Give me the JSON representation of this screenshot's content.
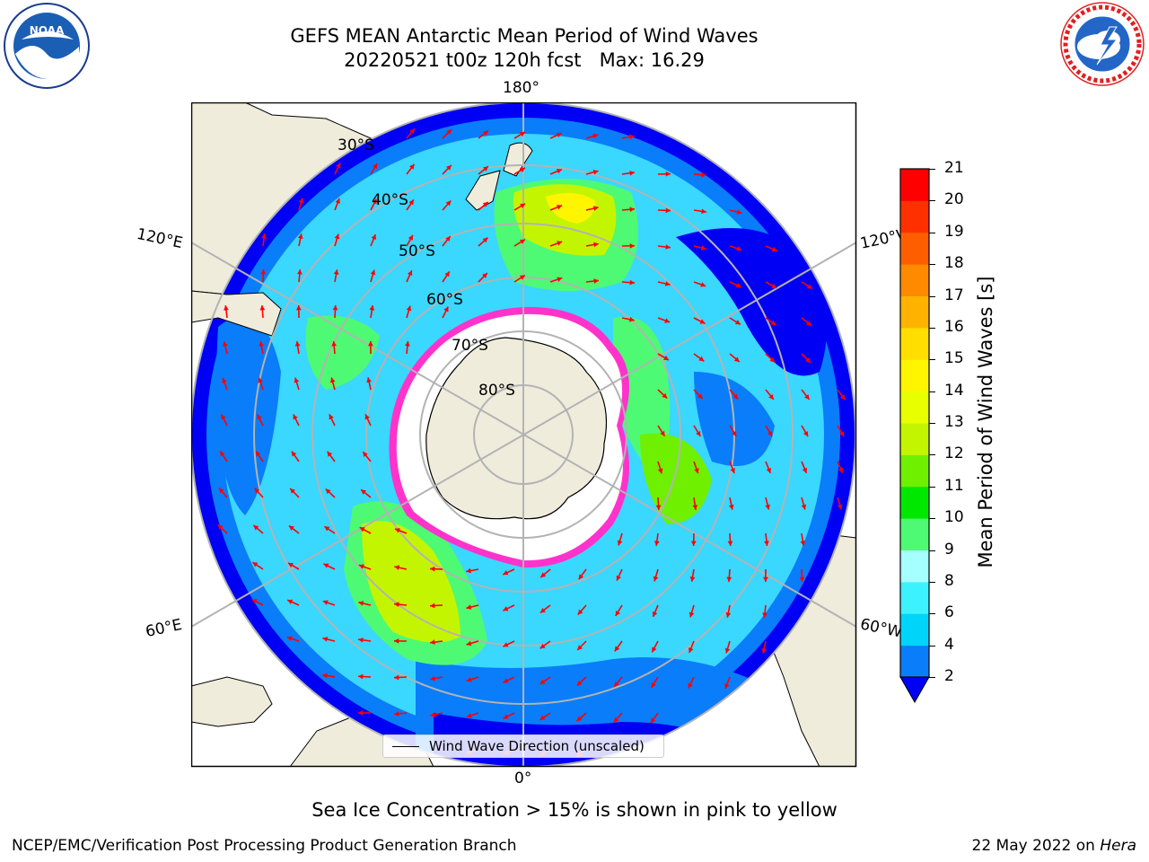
{
  "header": {
    "title": "GEFS MEAN Antarctic Mean Period of Wind Waves",
    "subtitle": "20220521 t00z 120h fcst   Max: 16.29"
  },
  "logos": {
    "left": {
      "icon": "noaa-logo-icon",
      "text": "NOAA"
    },
    "right": {
      "icon": "national-weather-service-logo-icon"
    }
  },
  "map": {
    "projection": "south-polar-stereographic",
    "longitude_labels": {
      "top": "180°",
      "left_upper": "120°E",
      "right_upper": "120°W",
      "left_lower": "60°E",
      "right_lower": "60°W",
      "bottom": "0°"
    },
    "latitude_labels": [
      "30°S",
      "40°S",
      "50°S",
      "60°S",
      "70°S",
      "80°S"
    ],
    "legend_label": "Wind Wave Direction (unscaled)",
    "arrow_color": "#ff0000",
    "sea_ice_color": "#ff33cc",
    "land_color": "#efecdc"
  },
  "colorbar": {
    "label": "Mean Period of Wind Waves [s]",
    "ticks": [
      "2",
      "4",
      "6",
      "8",
      "9",
      "10",
      "11",
      "12",
      "13",
      "14",
      "15",
      "16",
      "17",
      "18",
      "19",
      "20",
      "21"
    ],
    "colors": [
      "#0a7dfa",
      "#00d4f9",
      "#3df2ff",
      "#a6ffff",
      "#4efa73",
      "#00e800",
      "#6ef000",
      "#c4f500",
      "#e8ff00",
      "#fff500",
      "#ffde00",
      "#ffb300",
      "#ff8a00",
      "#ff5e00",
      "#ff3000",
      "#ff0000"
    ],
    "under_color": "#0000f5"
  },
  "caption": "Sea Ice Concentration > 15% is shown in pink to yellow",
  "footer": {
    "left": "NCEP/EMC/Verification Post Processing Product Generation Branch",
    "right_date": "22 May 2022 on ",
    "right_host": "Hera"
  }
}
